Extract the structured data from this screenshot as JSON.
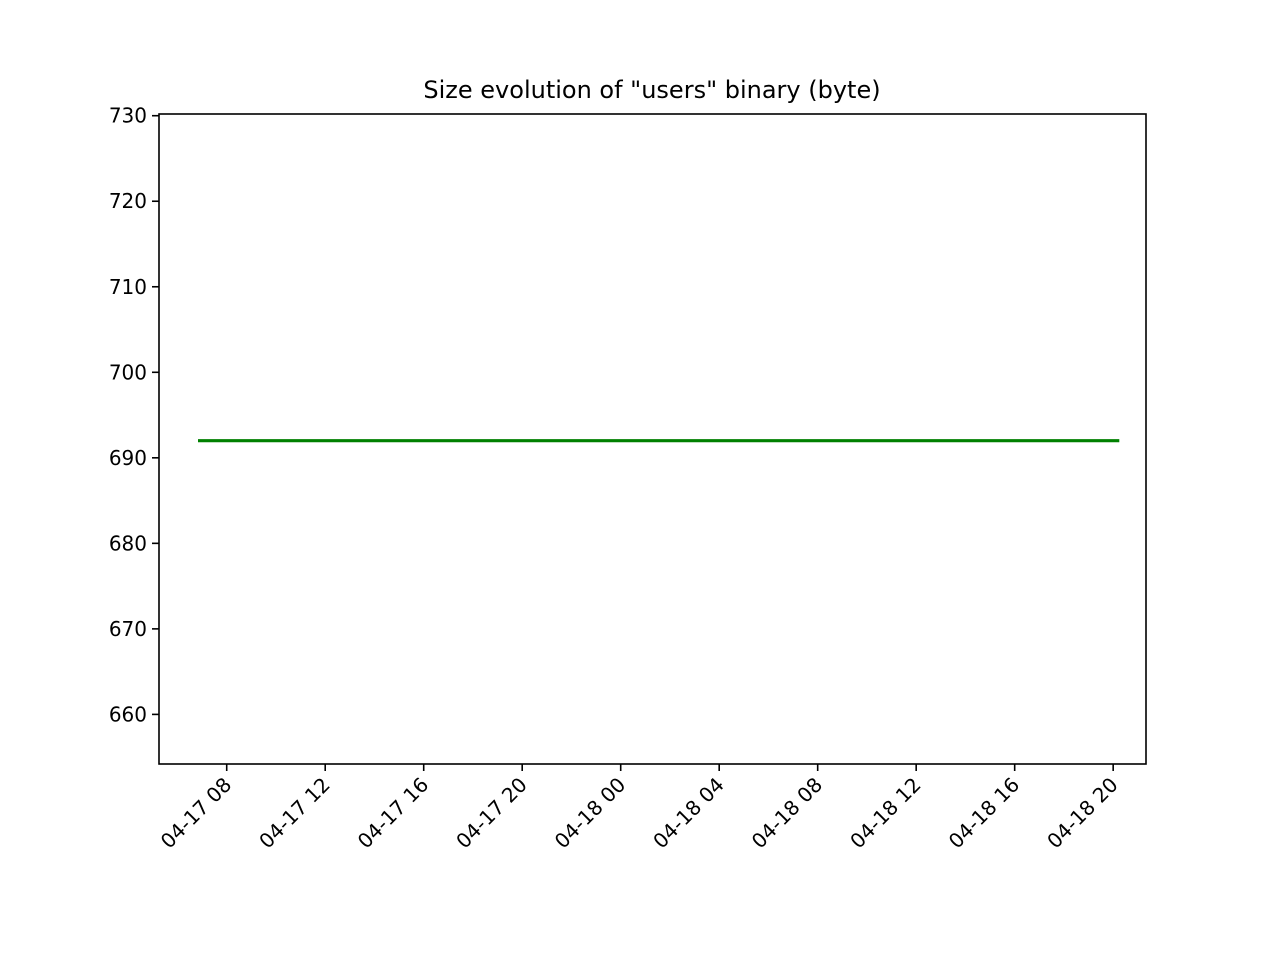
{
  "chart_data": {
    "type": "line",
    "title": "Size evolution of \"users\" binary (byte)",
    "xlabel": "",
    "ylabel": "",
    "x_ticks": [
      "04-17 08",
      "04-17 12",
      "04-17 16",
      "04-17 20",
      "04-18 00",
      "04-18 04",
      "04-18 08",
      "04-18 12",
      "04-18 16",
      "04-18 20"
    ],
    "y_ticks": [
      660,
      670,
      680,
      690,
      700,
      710,
      720,
      730
    ],
    "xlim": [
      "2000-04-17 05:15",
      "2000-04-18 21:20"
    ],
    "ylim": [
      654.2,
      730.2
    ],
    "grid": false,
    "series": [
      {
        "color": "#008000",
        "x": [
          "2000-04-17 06:50",
          "2000-04-18 20:15"
        ],
        "y": [
          692,
          692
        ]
      }
    ]
  }
}
